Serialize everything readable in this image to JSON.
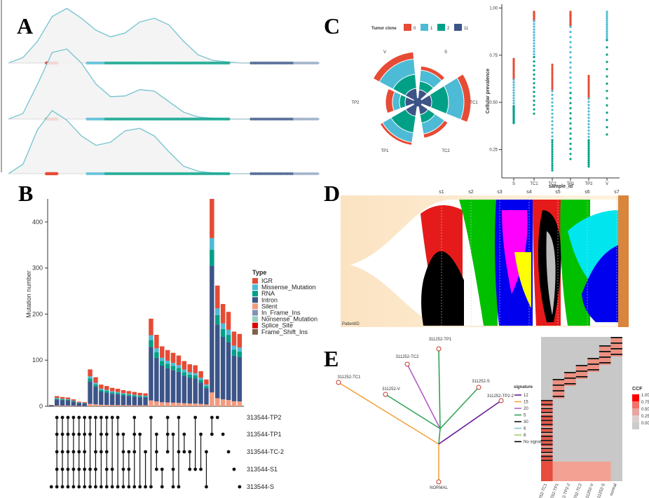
{
  "panels": {
    "A": "A",
    "B": "B",
    "C": "C",
    "D": "D",
    "E": "E"
  },
  "colors": {
    "red": "#e64b35",
    "lightblue": "#4dbbd5",
    "teal": "#00a087",
    "navy": "#3c5488",
    "salmon": "#f39b7f",
    "lavender": "#8491b4",
    "mint": "#91d1c2",
    "darkred": "#dc0000",
    "brown": "#7e6148"
  },
  "chart_data": [
    {
      "panel": "A",
      "type": "area",
      "rows": [
        {
          "density": [
            0,
            0.1,
            0.4,
            0.85,
            1.0,
            0.82,
            0.6,
            0.48,
            0.55,
            0.75,
            0.82,
            0.7,
            0.4,
            0.15,
            0.05,
            0.02,
            0
          ]
        },
        {
          "density": [
            0,
            0.08,
            0.5,
            0.95,
            1.0,
            0.8,
            0.5,
            0.32,
            0.33,
            0.42,
            0.4,
            0.25,
            0.1,
            0.03,
            0.01,
            0,
            0
          ]
        },
        {
          "density": [
            0,
            0.15,
            0.7,
            1.0,
            0.85,
            0.6,
            0.45,
            0.5,
            0.68,
            0.72,
            0.6,
            0.35,
            0.12,
            0.04,
            0.01,
            0,
            0
          ]
        }
      ]
    },
    {
      "panel": "B",
      "type": "bar",
      "ylabel": "Mutation number",
      "ylim": [
        0,
        450
      ],
      "yticks": [
        0,
        100,
        200,
        300,
        400
      ],
      "legend_title": "Type",
      "series_names": [
        "IGR",
        "Missense_Mutation",
        "RNA",
        "Intron",
        "Silent",
        "In_Frame_Ins",
        "Nonsense_Mutation",
        "Splice_Site",
        "Frame_Shift_Ins"
      ],
      "totals": [
        3,
        22,
        20,
        19,
        15,
        10,
        9,
        80,
        63,
        47,
        44,
        40,
        38,
        35,
        33,
        31,
        29,
        28,
        190,
        155,
        130,
        122,
        116,
        110,
        98,
        91,
        89,
        76,
        58,
        450,
        262,
        222,
        205,
        162,
        157
      ],
      "sample_labels": [
        "313544-TP2",
        "313544-TP1",
        "313544-TC-2",
        "313544-S1",
        "313544-S"
      ],
      "intersections": [
        [
          4
        ],
        [
          0,
          1,
          2,
          3,
          4
        ],
        [
          0,
          1,
          2,
          3,
          4
        ],
        [
          0,
          1,
          2,
          3,
          4
        ],
        [
          0,
          1,
          2,
          3,
          4
        ],
        [
          0,
          1,
          2,
          3,
          4
        ],
        [
          0,
          1,
          2,
          3,
          4
        ],
        [
          0,
          1,
          3,
          4
        ],
        [
          0,
          2,
          3,
          4
        ],
        [
          0,
          1,
          2,
          4
        ],
        [
          0,
          1,
          2,
          3,
          4
        ],
        [
          0,
          3,
          4
        ],
        [
          0,
          1,
          4
        ],
        [
          1,
          2,
          3,
          4
        ],
        [
          2,
          3,
          4
        ],
        [
          0,
          1,
          2,
          4
        ],
        [
          1,
          4
        ],
        [
          2,
          4
        ],
        [
          0,
          4
        ],
        [
          1,
          2,
          3
        ],
        [
          3,
          4
        ],
        [
          0,
          1,
          2
        ],
        [
          1,
          3,
          4
        ],
        [
          0,
          2,
          4
        ],
        [
          1,
          2
        ],
        [
          2,
          3
        ],
        [
          0,
          3
        ],
        [
          1,
          3
        ],
        [
          2,
          4
        ],
        [
          0,
          1
        ],
        [
          0
        ],
        [
          1
        ],
        [
          2
        ],
        [
          3
        ],
        [
          4
        ]
      ]
    },
    {
      "panel": "C-rose",
      "type": "pie",
      "legend_title": "Tumor clone",
      "legend_entries": [
        "0",
        "1",
        "2",
        "11"
      ],
      "categories": [
        "V",
        "S",
        "TC1",
        "TC2",
        "TP1",
        "TP2"
      ]
    },
    {
      "panel": "C-scatter",
      "type": "scatter",
      "xlabel": "sample_id",
      "ylabel": "Cellular prevalence",
      "categories": [
        "S",
        "TC1",
        "TC2",
        "TP1",
        "TP2",
        "V"
      ],
      "yticks": [
        "0.25",
        "0.50",
        "0.75",
        "1.00"
      ],
      "ylim": [
        0.1,
        1.02
      ]
    },
    {
      "panel": "D",
      "type": "area",
      "x": [
        "s1",
        "s2",
        "s3",
        "s4",
        "s5",
        "s6",
        "s7"
      ],
      "corner_label": "PatientID"
    },
    {
      "panel": "E-tree",
      "type": "table",
      "nodes": [
        "311252-TP1",
        "311252-TC2",
        "311252-TC1",
        "311252-V",
        "311252-S",
        "311252-TP2-2",
        "NORMAL"
      ],
      "legend_title": "signature",
      "signatures": [
        "12",
        "15",
        "20",
        "5",
        "30",
        "6",
        "8",
        "No signature"
      ]
    },
    {
      "panel": "E-heat",
      "type": "heatmap",
      "xlabels": [
        "311252-TC1",
        "311252-TP1",
        "311252-TP2-2",
        "311252-TC2",
        "311252-V",
        "311252-S",
        "normal"
      ],
      "legend_title": "CCF",
      "legend_ticks": [
        "1.00",
        "0.75",
        "0.50",
        "0.25",
        "0.00"
      ]
    }
  ]
}
